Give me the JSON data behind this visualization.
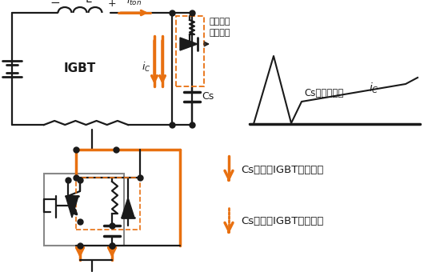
{
  "bg": "#ffffff",
  "orange": "#E87010",
  "blk": "#1a1a1a",
  "gray": "#888888",
  "lw": 1.6,
  "figsize": [
    5.3,
    3.4
  ],
  "dpi": 100,
  "legend1": "Cs充电（IGBT关断）时",
  "legend2": "Cs放电（IGBT开通）时",
  "cs_label": "Cs的放电电流",
  "discharge_res_line1": "放电电流",
  "discharge_res_line2": "限制电阻"
}
